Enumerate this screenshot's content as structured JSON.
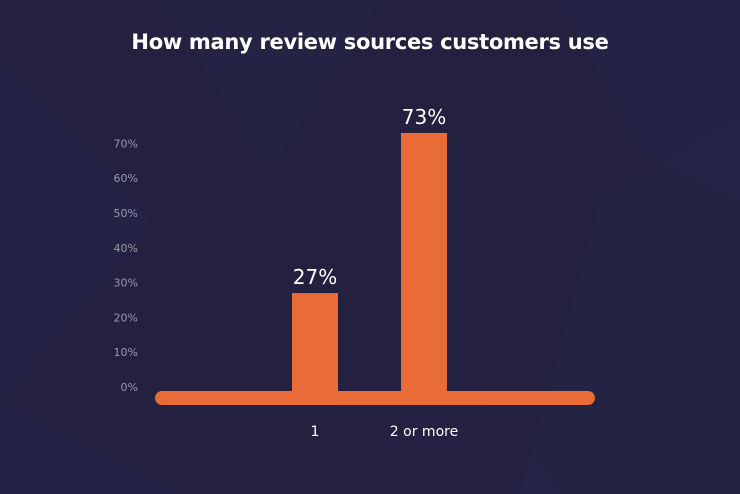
{
  "colors": {
    "background": "#23213f",
    "bar": "#e96b38",
    "title": "#ffffff",
    "tick_label": "#9a98ad"
  },
  "chart_data": {
    "type": "bar",
    "title": "How many review sources customers use",
    "categories": [
      "1",
      "2 or more"
    ],
    "values": [
      27,
      73
    ],
    "data_labels": [
      "27%",
      "73%"
    ],
    "y_ticks": [
      "0%",
      "10%",
      "20%",
      "30%",
      "40%",
      "50%",
      "60%",
      "70%"
    ],
    "ylim": [
      0,
      80
    ],
    "grid": false,
    "legend": "none",
    "xlabel": "",
    "ylabel": ""
  }
}
